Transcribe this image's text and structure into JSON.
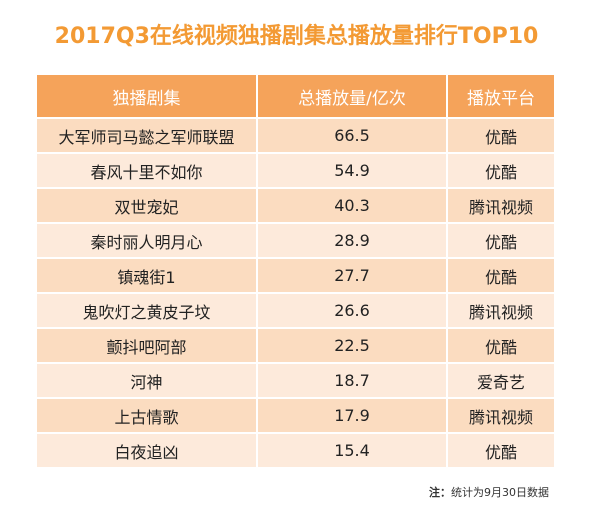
{
  "title": "2017Q3在线视频独播剧集总播放量排行TOP10",
  "colors": {
    "accent": "#f39a34",
    "header_bg": "#f5a35a",
    "row_odd": "#fbdcc0",
    "row_even": "#fdeadb"
  },
  "table": {
    "headers": [
      "独播剧集",
      "总播放量/亿次",
      "播放平台"
    ],
    "rows": [
      [
        "大军师司马懿之军师联盟",
        "66.5",
        "优酷"
      ],
      [
        "春风十里不如你",
        "54.9",
        "优酷"
      ],
      [
        "双世宠妃",
        "40.3",
        "腾讯视频"
      ],
      [
        "秦时丽人明月心",
        "28.9",
        "优酷"
      ],
      [
        "镇魂街1",
        "27.7",
        "优酷"
      ],
      [
        "鬼吹灯之黄皮子坟",
        "26.6",
        "腾讯视频"
      ],
      [
        "颤抖吧阿部",
        "22.5",
        "优酷"
      ],
      [
        "河神",
        "18.7",
        "爱奇艺"
      ],
      [
        "上古情歌",
        "17.9",
        "腾讯视频"
      ],
      [
        "白夜追凶",
        "15.4",
        "优酷"
      ]
    ]
  },
  "note": {
    "label": "注：",
    "text": "统计为9月30日数据"
  }
}
